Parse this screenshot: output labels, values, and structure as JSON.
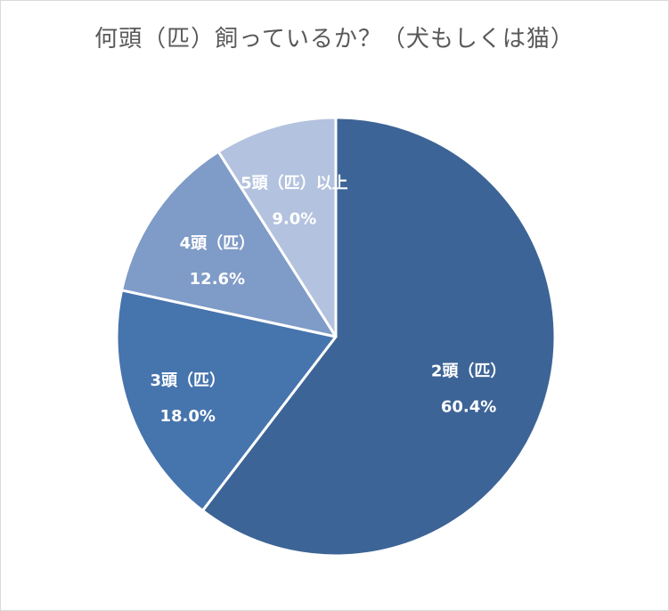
{
  "chart_data": {
    "type": "pie",
    "title": "何頭（匹）飼っているか？（犬もしくは猫）",
    "categories": [
      "2頭（匹）",
      "3頭（匹）",
      "4頭（匹）",
      "5頭（匹）以上"
    ],
    "values": [
      60.4,
      18.0,
      12.6,
      9.0
    ],
    "value_labels": [
      "60.4%",
      "18.0%",
      "12.6%",
      "9.0%"
    ],
    "colors": [
      "#3d6496",
      "#4674ad",
      "#7f9bc7",
      "#b3c2de"
    ],
    "start_angle": "12 o'clock",
    "direction": "clockwise",
    "legend": "none"
  }
}
